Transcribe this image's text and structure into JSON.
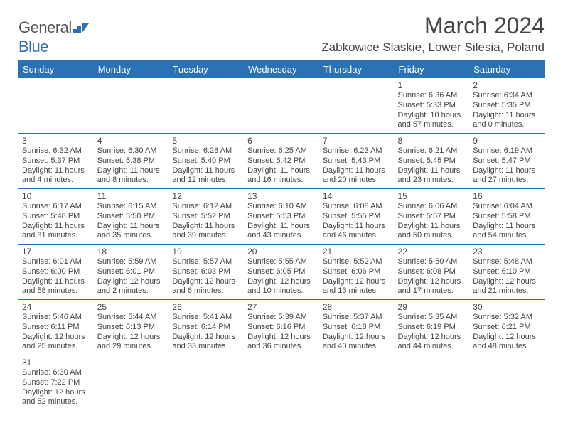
{
  "brand": {
    "name1": "General",
    "name2": "Blue"
  },
  "title": "March 2024",
  "location": "Zabkowice Slaskie, Lower Silesia, Poland",
  "colors": {
    "header_bg": "#2a72b5",
    "border": "#2a72b5",
    "text": "#444444"
  },
  "day_headers": [
    "Sunday",
    "Monday",
    "Tuesday",
    "Wednesday",
    "Thursday",
    "Friday",
    "Saturday"
  ],
  "weeks": [
    [
      null,
      null,
      null,
      null,
      null,
      {
        "d": "1",
        "sunrise": "Sunrise: 6:36 AM",
        "sunset": "Sunset: 5:33 PM",
        "day1": "Daylight: 10 hours",
        "day2": "and 57 minutes."
      },
      {
        "d": "2",
        "sunrise": "Sunrise: 6:34 AM",
        "sunset": "Sunset: 5:35 PM",
        "day1": "Daylight: 11 hours",
        "day2": "and 0 minutes."
      }
    ],
    [
      {
        "d": "3",
        "sunrise": "Sunrise: 6:32 AM",
        "sunset": "Sunset: 5:37 PM",
        "day1": "Daylight: 11 hours",
        "day2": "and 4 minutes."
      },
      {
        "d": "4",
        "sunrise": "Sunrise: 6:30 AM",
        "sunset": "Sunset: 5:38 PM",
        "day1": "Daylight: 11 hours",
        "day2": "and 8 minutes."
      },
      {
        "d": "5",
        "sunrise": "Sunrise: 6:28 AM",
        "sunset": "Sunset: 5:40 PM",
        "day1": "Daylight: 11 hours",
        "day2": "and 12 minutes."
      },
      {
        "d": "6",
        "sunrise": "Sunrise: 6:25 AM",
        "sunset": "Sunset: 5:42 PM",
        "day1": "Daylight: 11 hours",
        "day2": "and 16 minutes."
      },
      {
        "d": "7",
        "sunrise": "Sunrise: 6:23 AM",
        "sunset": "Sunset: 5:43 PM",
        "day1": "Daylight: 11 hours",
        "day2": "and 20 minutes."
      },
      {
        "d": "8",
        "sunrise": "Sunrise: 6:21 AM",
        "sunset": "Sunset: 5:45 PM",
        "day1": "Daylight: 11 hours",
        "day2": "and 23 minutes."
      },
      {
        "d": "9",
        "sunrise": "Sunrise: 6:19 AM",
        "sunset": "Sunset: 5:47 PM",
        "day1": "Daylight: 11 hours",
        "day2": "and 27 minutes."
      }
    ],
    [
      {
        "d": "10",
        "sunrise": "Sunrise: 6:17 AM",
        "sunset": "Sunset: 5:48 PM",
        "day1": "Daylight: 11 hours",
        "day2": "and 31 minutes."
      },
      {
        "d": "11",
        "sunrise": "Sunrise: 6:15 AM",
        "sunset": "Sunset: 5:50 PM",
        "day1": "Daylight: 11 hours",
        "day2": "and 35 minutes."
      },
      {
        "d": "12",
        "sunrise": "Sunrise: 6:12 AM",
        "sunset": "Sunset: 5:52 PM",
        "day1": "Daylight: 11 hours",
        "day2": "and 39 minutes."
      },
      {
        "d": "13",
        "sunrise": "Sunrise: 6:10 AM",
        "sunset": "Sunset: 5:53 PM",
        "day1": "Daylight: 11 hours",
        "day2": "and 43 minutes."
      },
      {
        "d": "14",
        "sunrise": "Sunrise: 6:08 AM",
        "sunset": "Sunset: 5:55 PM",
        "day1": "Daylight: 11 hours",
        "day2": "and 46 minutes."
      },
      {
        "d": "15",
        "sunrise": "Sunrise: 6:06 AM",
        "sunset": "Sunset: 5:57 PM",
        "day1": "Daylight: 11 hours",
        "day2": "and 50 minutes."
      },
      {
        "d": "16",
        "sunrise": "Sunrise: 6:04 AM",
        "sunset": "Sunset: 5:58 PM",
        "day1": "Daylight: 11 hours",
        "day2": "and 54 minutes."
      }
    ],
    [
      {
        "d": "17",
        "sunrise": "Sunrise: 6:01 AM",
        "sunset": "Sunset: 6:00 PM",
        "day1": "Daylight: 11 hours",
        "day2": "and 58 minutes."
      },
      {
        "d": "18",
        "sunrise": "Sunrise: 5:59 AM",
        "sunset": "Sunset: 6:01 PM",
        "day1": "Daylight: 12 hours",
        "day2": "and 2 minutes."
      },
      {
        "d": "19",
        "sunrise": "Sunrise: 5:57 AM",
        "sunset": "Sunset: 6:03 PM",
        "day1": "Daylight: 12 hours",
        "day2": "and 6 minutes."
      },
      {
        "d": "20",
        "sunrise": "Sunrise: 5:55 AM",
        "sunset": "Sunset: 6:05 PM",
        "day1": "Daylight: 12 hours",
        "day2": "and 10 minutes."
      },
      {
        "d": "21",
        "sunrise": "Sunrise: 5:52 AM",
        "sunset": "Sunset: 6:06 PM",
        "day1": "Daylight: 12 hours",
        "day2": "and 13 minutes."
      },
      {
        "d": "22",
        "sunrise": "Sunrise: 5:50 AM",
        "sunset": "Sunset: 6:08 PM",
        "day1": "Daylight: 12 hours",
        "day2": "and 17 minutes."
      },
      {
        "d": "23",
        "sunrise": "Sunrise: 5:48 AM",
        "sunset": "Sunset: 6:10 PM",
        "day1": "Daylight: 12 hours",
        "day2": "and 21 minutes."
      }
    ],
    [
      {
        "d": "24",
        "sunrise": "Sunrise: 5:46 AM",
        "sunset": "Sunset: 6:11 PM",
        "day1": "Daylight: 12 hours",
        "day2": "and 25 minutes."
      },
      {
        "d": "25",
        "sunrise": "Sunrise: 5:44 AM",
        "sunset": "Sunset: 6:13 PM",
        "day1": "Daylight: 12 hours",
        "day2": "and 29 minutes."
      },
      {
        "d": "26",
        "sunrise": "Sunrise: 5:41 AM",
        "sunset": "Sunset: 6:14 PM",
        "day1": "Daylight: 12 hours",
        "day2": "and 33 minutes."
      },
      {
        "d": "27",
        "sunrise": "Sunrise: 5:39 AM",
        "sunset": "Sunset: 6:16 PM",
        "day1": "Daylight: 12 hours",
        "day2": "and 36 minutes."
      },
      {
        "d": "28",
        "sunrise": "Sunrise: 5:37 AM",
        "sunset": "Sunset: 6:18 PM",
        "day1": "Daylight: 12 hours",
        "day2": "and 40 minutes."
      },
      {
        "d": "29",
        "sunrise": "Sunrise: 5:35 AM",
        "sunset": "Sunset: 6:19 PM",
        "day1": "Daylight: 12 hours",
        "day2": "and 44 minutes."
      },
      {
        "d": "30",
        "sunrise": "Sunrise: 5:32 AM",
        "sunset": "Sunset: 6:21 PM",
        "day1": "Daylight: 12 hours",
        "day2": "and 48 minutes."
      }
    ],
    [
      {
        "d": "31",
        "sunrise": "Sunrise: 6:30 AM",
        "sunset": "Sunset: 7:22 PM",
        "day1": "Daylight: 12 hours",
        "day2": "and 52 minutes."
      },
      null,
      null,
      null,
      null,
      null,
      null
    ]
  ]
}
